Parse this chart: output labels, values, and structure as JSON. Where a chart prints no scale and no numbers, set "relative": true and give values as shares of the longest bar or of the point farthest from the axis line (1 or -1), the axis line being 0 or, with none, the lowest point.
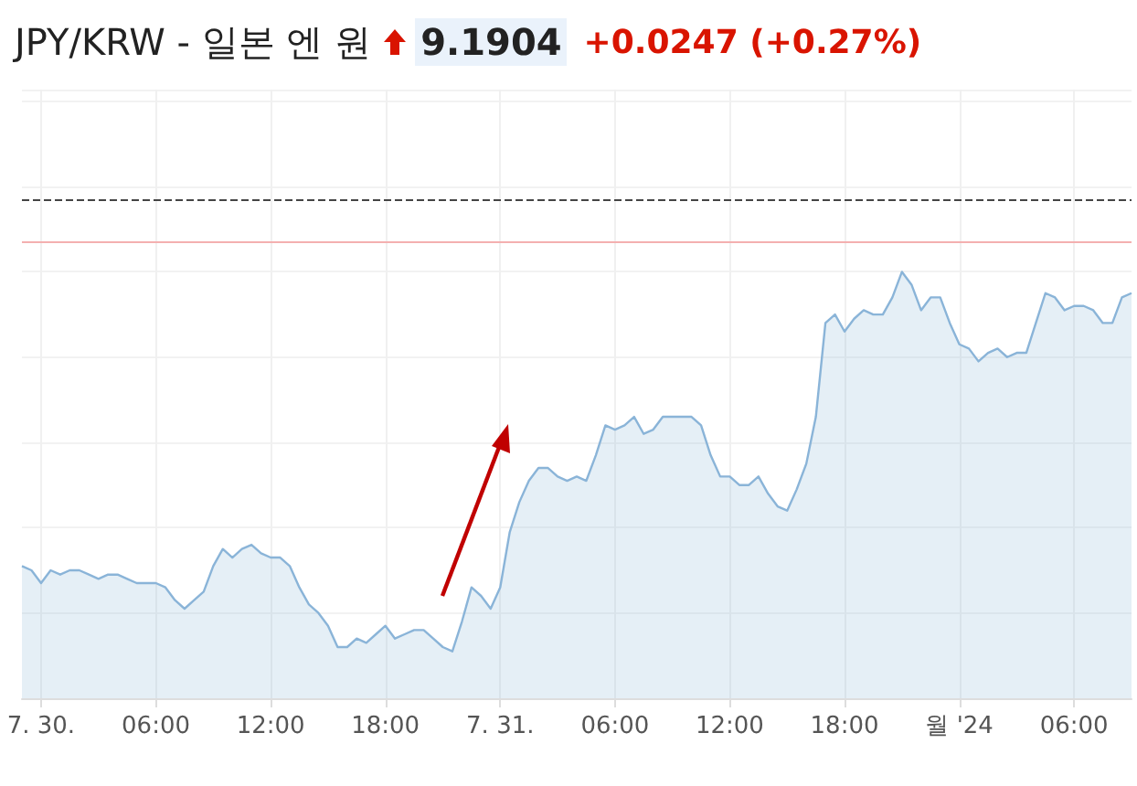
{
  "chart_data": {
    "type": "area",
    "title": "JPY/KRW - 일본 엔 원",
    "annotations": [
      "9.1904",
      "+0.0247 (+0.27%)"
    ],
    "relative": true,
    "categories": [
      null,
      null,
      "7. 30.",
      null,
      null,
      null,
      null,
      null,
      null,
      null,
      null,
      null,
      null,
      null,
      "06:00",
      null,
      null,
      null,
      null,
      null,
      null,
      null,
      null,
      null,
      null,
      null,
      "12:00",
      null,
      null,
      null,
      null,
      null,
      null,
      null,
      null,
      null,
      null,
      null,
      "18:00",
      null,
      null,
      null,
      null,
      null,
      null,
      null,
      null,
      null,
      null,
      null,
      "7. 31.",
      null,
      null,
      null,
      null,
      null,
      null,
      null,
      null,
      null,
      null,
      null,
      "06:00",
      null,
      null,
      null,
      null,
      null,
      null,
      null,
      null,
      null,
      null,
      null,
      "12:00",
      null,
      null,
      null,
      null,
      null,
      null,
      null,
      null,
      null,
      null,
      null,
      "18:00",
      null,
      null,
      null,
      null,
      null,
      null,
      null,
      null,
      null,
      null,
      null,
      "월 '24",
      null,
      null,
      null,
      null,
      null,
      null,
      null,
      null,
      null,
      null,
      null,
      "06:00",
      null,
      null,
      null,
      null,
      null,
      null
    ],
    "series": [
      {
        "color": "#8ab4d8",
        "values": [
          0.31,
          0.3,
          0.27,
          0.3,
          0.29,
          0.3,
          0.3,
          0.29,
          0.28,
          0.29,
          0.29,
          0.28,
          0.27,
          0.27,
          0.27,
          0.26,
          0.23,
          0.21,
          0.23,
          0.25,
          0.31,
          0.35,
          0.33,
          0.35,
          0.36,
          0.34,
          0.33,
          0.33,
          0.31,
          0.26,
          0.22,
          0.2,
          0.17,
          0.12,
          0.12,
          0.14,
          0.13,
          0.15,
          0.17,
          0.14,
          0.15,
          0.16,
          0.16,
          0.14,
          0.12,
          0.11,
          0.18,
          0.26,
          0.24,
          0.21,
          0.26,
          0.39,
          0.46,
          0.51,
          0.54,
          0.54,
          0.52,
          0.51,
          0.52,
          0.51,
          0.57,
          0.64,
          0.63,
          0.64,
          0.66,
          0.62,
          0.63,
          0.66,
          0.66,
          0.66,
          0.66,
          0.64,
          0.57,
          0.52,
          0.52,
          0.5,
          0.5,
          0.52,
          0.48,
          0.45,
          0.44,
          0.49,
          0.55,
          0.66,
          0.88,
          0.9,
          0.86,
          0.89,
          0.91,
          0.9,
          0.9,
          0.94,
          1.0,
          0.97,
          0.91,
          0.94,
          0.94,
          0.88,
          0.83,
          0.82,
          0.79,
          0.81,
          0.82,
          0.8,
          0.81,
          0.81,
          0.88,
          0.95,
          0.94,
          0.91,
          0.92,
          0.92,
          0.91,
          0.88,
          0.88,
          0.94,
          0.95
        ]
      }
    ],
    "ref_lines": [
      {
        "axis": "y",
        "value": 1.17,
        "color": "#444444",
        "line_style": "dashed"
      },
      {
        "axis": "y",
        "value": 1.07,
        "color": "#f4b0b0",
        "line_style": "solid"
      }
    ],
    "grid": true,
    "marker": "none",
    "line_style": "solid"
  }
}
